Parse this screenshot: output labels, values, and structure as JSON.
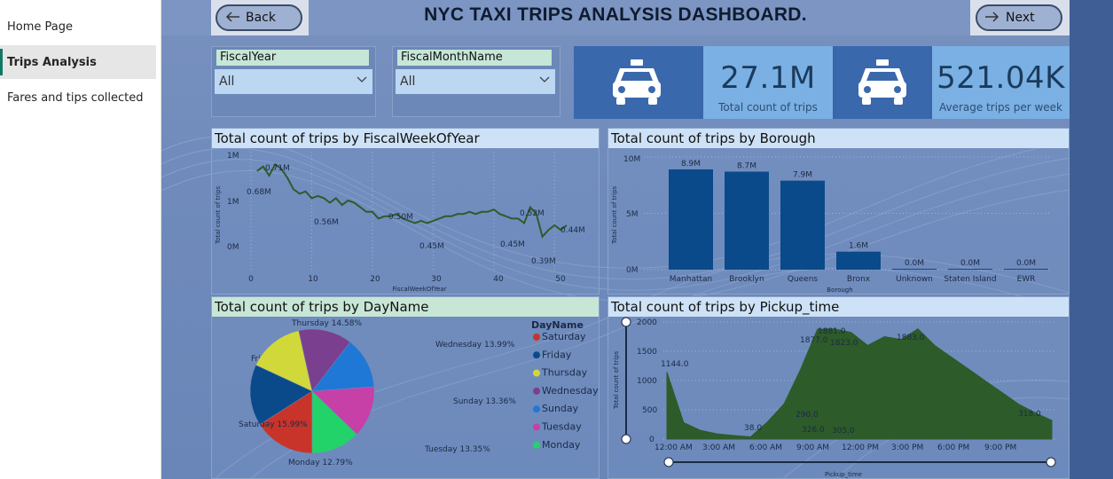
{
  "sidebar": {
    "items": [
      {
        "label": "Home Page",
        "active": false
      },
      {
        "label": "Trips Analysis",
        "active": true
      },
      {
        "label": "Fares and tips collected",
        "active": false
      }
    ]
  },
  "header": {
    "title": "NYC TAXI TRIPS ANALYSIS DASHBOARD.",
    "back_label": "Back",
    "next_label": "Next",
    "back_icon": "arrow-left-icon",
    "next_icon": "arrow-right-icon"
  },
  "slicers": [
    {
      "label": "FiscalYear",
      "value": "All"
    },
    {
      "label": "FiscalMonthName",
      "value": "All"
    }
  ],
  "kpis": [
    {
      "icon": "taxi-icon",
      "value": "27.1M",
      "label": "Total count of trips"
    },
    {
      "icon": "taxi-icon",
      "value": "521.04K",
      "label": "Average trips per week"
    }
  ],
  "colors": {
    "accent_dark": "#0a4a8a",
    "line_green": "#2e5b2a",
    "slicer_label_bg": "#c6e6d7",
    "panel_title_blue": "#cde2f7",
    "panel_title_green": "#c8e6d6"
  },
  "charts": {
    "week": {
      "title": "Total count of trips by FiscalWeekOfYear",
      "xlabel": "FiscalWeekOfYear",
      "ylabel": "Total count of trips",
      "yticks": [
        "1M",
        "1M",
        "0M"
      ],
      "xticks": [
        "0",
        "10",
        "20",
        "30",
        "40",
        "50"
      ],
      "data_labels": [
        "0.68M",
        "0.71M",
        "0.56M",
        "0.50M",
        "0.45M",
        "0.45M",
        "0.52M",
        "0.39M",
        "0.44M"
      ]
    },
    "borough": {
      "title": "Total count of trips by Borough",
      "xlabel": "Borough",
      "ylabel": "Total count of trips",
      "yticks": [
        "10M",
        "5M",
        "0M"
      ]
    },
    "day": {
      "title": "Total count of trips by DayName",
      "legend_title": "DayName"
    },
    "pickup": {
      "title": "Total count of trips by Pickup_time",
      "xlabel": "Pickup_time",
      "ylabel": "Total count of trips",
      "yticks": [
        "2000",
        "1500",
        "1000",
        "500",
        "0"
      ],
      "xticks": [
        "12:00 AM",
        "3:00 AM",
        "6:00 AM",
        "9:00 AM",
        "12:00 PM",
        "3:00 PM",
        "6:00 PM",
        "9:00 PM"
      ],
      "data_labels": [
        "1144.0",
        "38.0",
        "290.0",
        "326.0",
        "305.0",
        "1877.0",
        "1881.0",
        "1823.0",
        "1883.0",
        "318.0"
      ]
    }
  },
  "chart_data": [
    {
      "type": "line",
      "title": "Total count of trips by FiscalWeekOfYear",
      "xlabel": "FiscalWeekOfYear",
      "ylabel": "Total count of trips",
      "x": [
        1,
        2,
        3,
        4,
        5,
        6,
        7,
        8,
        9,
        10,
        11,
        12,
        13,
        14,
        15,
        16,
        17,
        18,
        19,
        20,
        21,
        22,
        23,
        24,
        25,
        26,
        27,
        28,
        29,
        30,
        31,
        32,
        33,
        34,
        35,
        36,
        37,
        38,
        39,
        40,
        41,
        42,
        43,
        44,
        45,
        46,
        47,
        48,
        49,
        50,
        51,
        52
      ],
      "values": [
        0.68,
        0.7,
        0.66,
        0.71,
        0.69,
        0.65,
        0.6,
        0.58,
        0.59,
        0.56,
        0.57,
        0.56,
        0.54,
        0.56,
        0.53,
        0.55,
        0.54,
        0.52,
        0.5,
        0.5,
        0.47,
        0.48,
        0.48,
        0.49,
        0.47,
        0.46,
        0.45,
        0.46,
        0.45,
        0.46,
        0.47,
        0.48,
        0.48,
        0.49,
        0.49,
        0.5,
        0.49,
        0.5,
        0.5,
        0.51,
        0.49,
        0.48,
        0.47,
        0.47,
        0.45,
        0.52,
        0.49,
        0.39,
        0.42,
        0.44,
        0.42,
        0.44
      ],
      "xlim": [
        0,
        52
      ]
    },
    {
      "type": "bar",
      "title": "Total count of trips by Borough",
      "xlabel": "Borough",
      "ylabel": "Total count of trips",
      "categories": [
        "Manhattan",
        "Brooklyn",
        "Queens",
        "Bronx",
        "Unknown",
        "Staten Island",
        "EWR"
      ],
      "values": [
        8.9,
        8.7,
        7.9,
        1.6,
        0.0,
        0.0,
        0.0
      ],
      "value_labels": [
        "8.9M",
        "8.7M",
        "7.9M",
        "1.6M",
        "0.0M",
        "0.0M",
        "0.0M"
      ],
      "ylim": [
        0,
        10
      ],
      "color": "#0a4a8a"
    },
    {
      "type": "pie",
      "title": "Total count of trips by DayName",
      "legend_title": "DayName",
      "categories": [
        "Saturday",
        "Friday",
        "Thursday",
        "Wednesday",
        "Sunday",
        "Tuesday",
        "Monday"
      ],
      "values": [
        15.99,
        15.94,
        14.58,
        13.99,
        13.36,
        13.35,
        12.79
      ],
      "slice_labels": [
        "Saturday 15.99%",
        "Friday 15.94%",
        "Thursday 14.58%",
        "Wednesday 13.99%",
        "Sunday 13.36%",
        "Tuesday 13.35%",
        "Monday 12.79%"
      ],
      "colors": [
        "#c8342a",
        "#0b4a8a",
        "#d1d83a",
        "#7b3f8f",
        "#1f78d6",
        "#c640a8",
        "#22d36a"
      ],
      "legend": "right"
    },
    {
      "type": "area",
      "title": "Total count of trips by Pickup_time",
      "xlabel": "Pickup_time",
      "ylabel": "Total count of trips",
      "ylim": [
        0,
        2000
      ],
      "color": "#2e5b2a",
      "x": [
        "12:00 AM",
        "1:00 AM",
        "2:00 AM",
        "3:00 AM",
        "4:00 AM",
        "5:00 AM",
        "6:00 AM",
        "7:00 AM",
        "8:00 AM",
        "9:00 AM",
        "10:00 AM",
        "11:00 AM",
        "12:00 PM",
        "1:00 PM",
        "2:00 PM",
        "3:00 PM",
        "4:00 PM",
        "5:00 PM",
        "6:00 PM",
        "7:00 PM",
        "8:00 PM",
        "9:00 PM",
        "10:00 PM",
        "11:00 PM"
      ],
      "values": [
        1144,
        280,
        150,
        90,
        60,
        38,
        290,
        600,
        1200,
        1877,
        1881,
        1823,
        1600,
        1750,
        1700,
        1883,
        1600,
        1400,
        1200,
        1000,
        800,
        600,
        450,
        318
      ]
    }
  ]
}
